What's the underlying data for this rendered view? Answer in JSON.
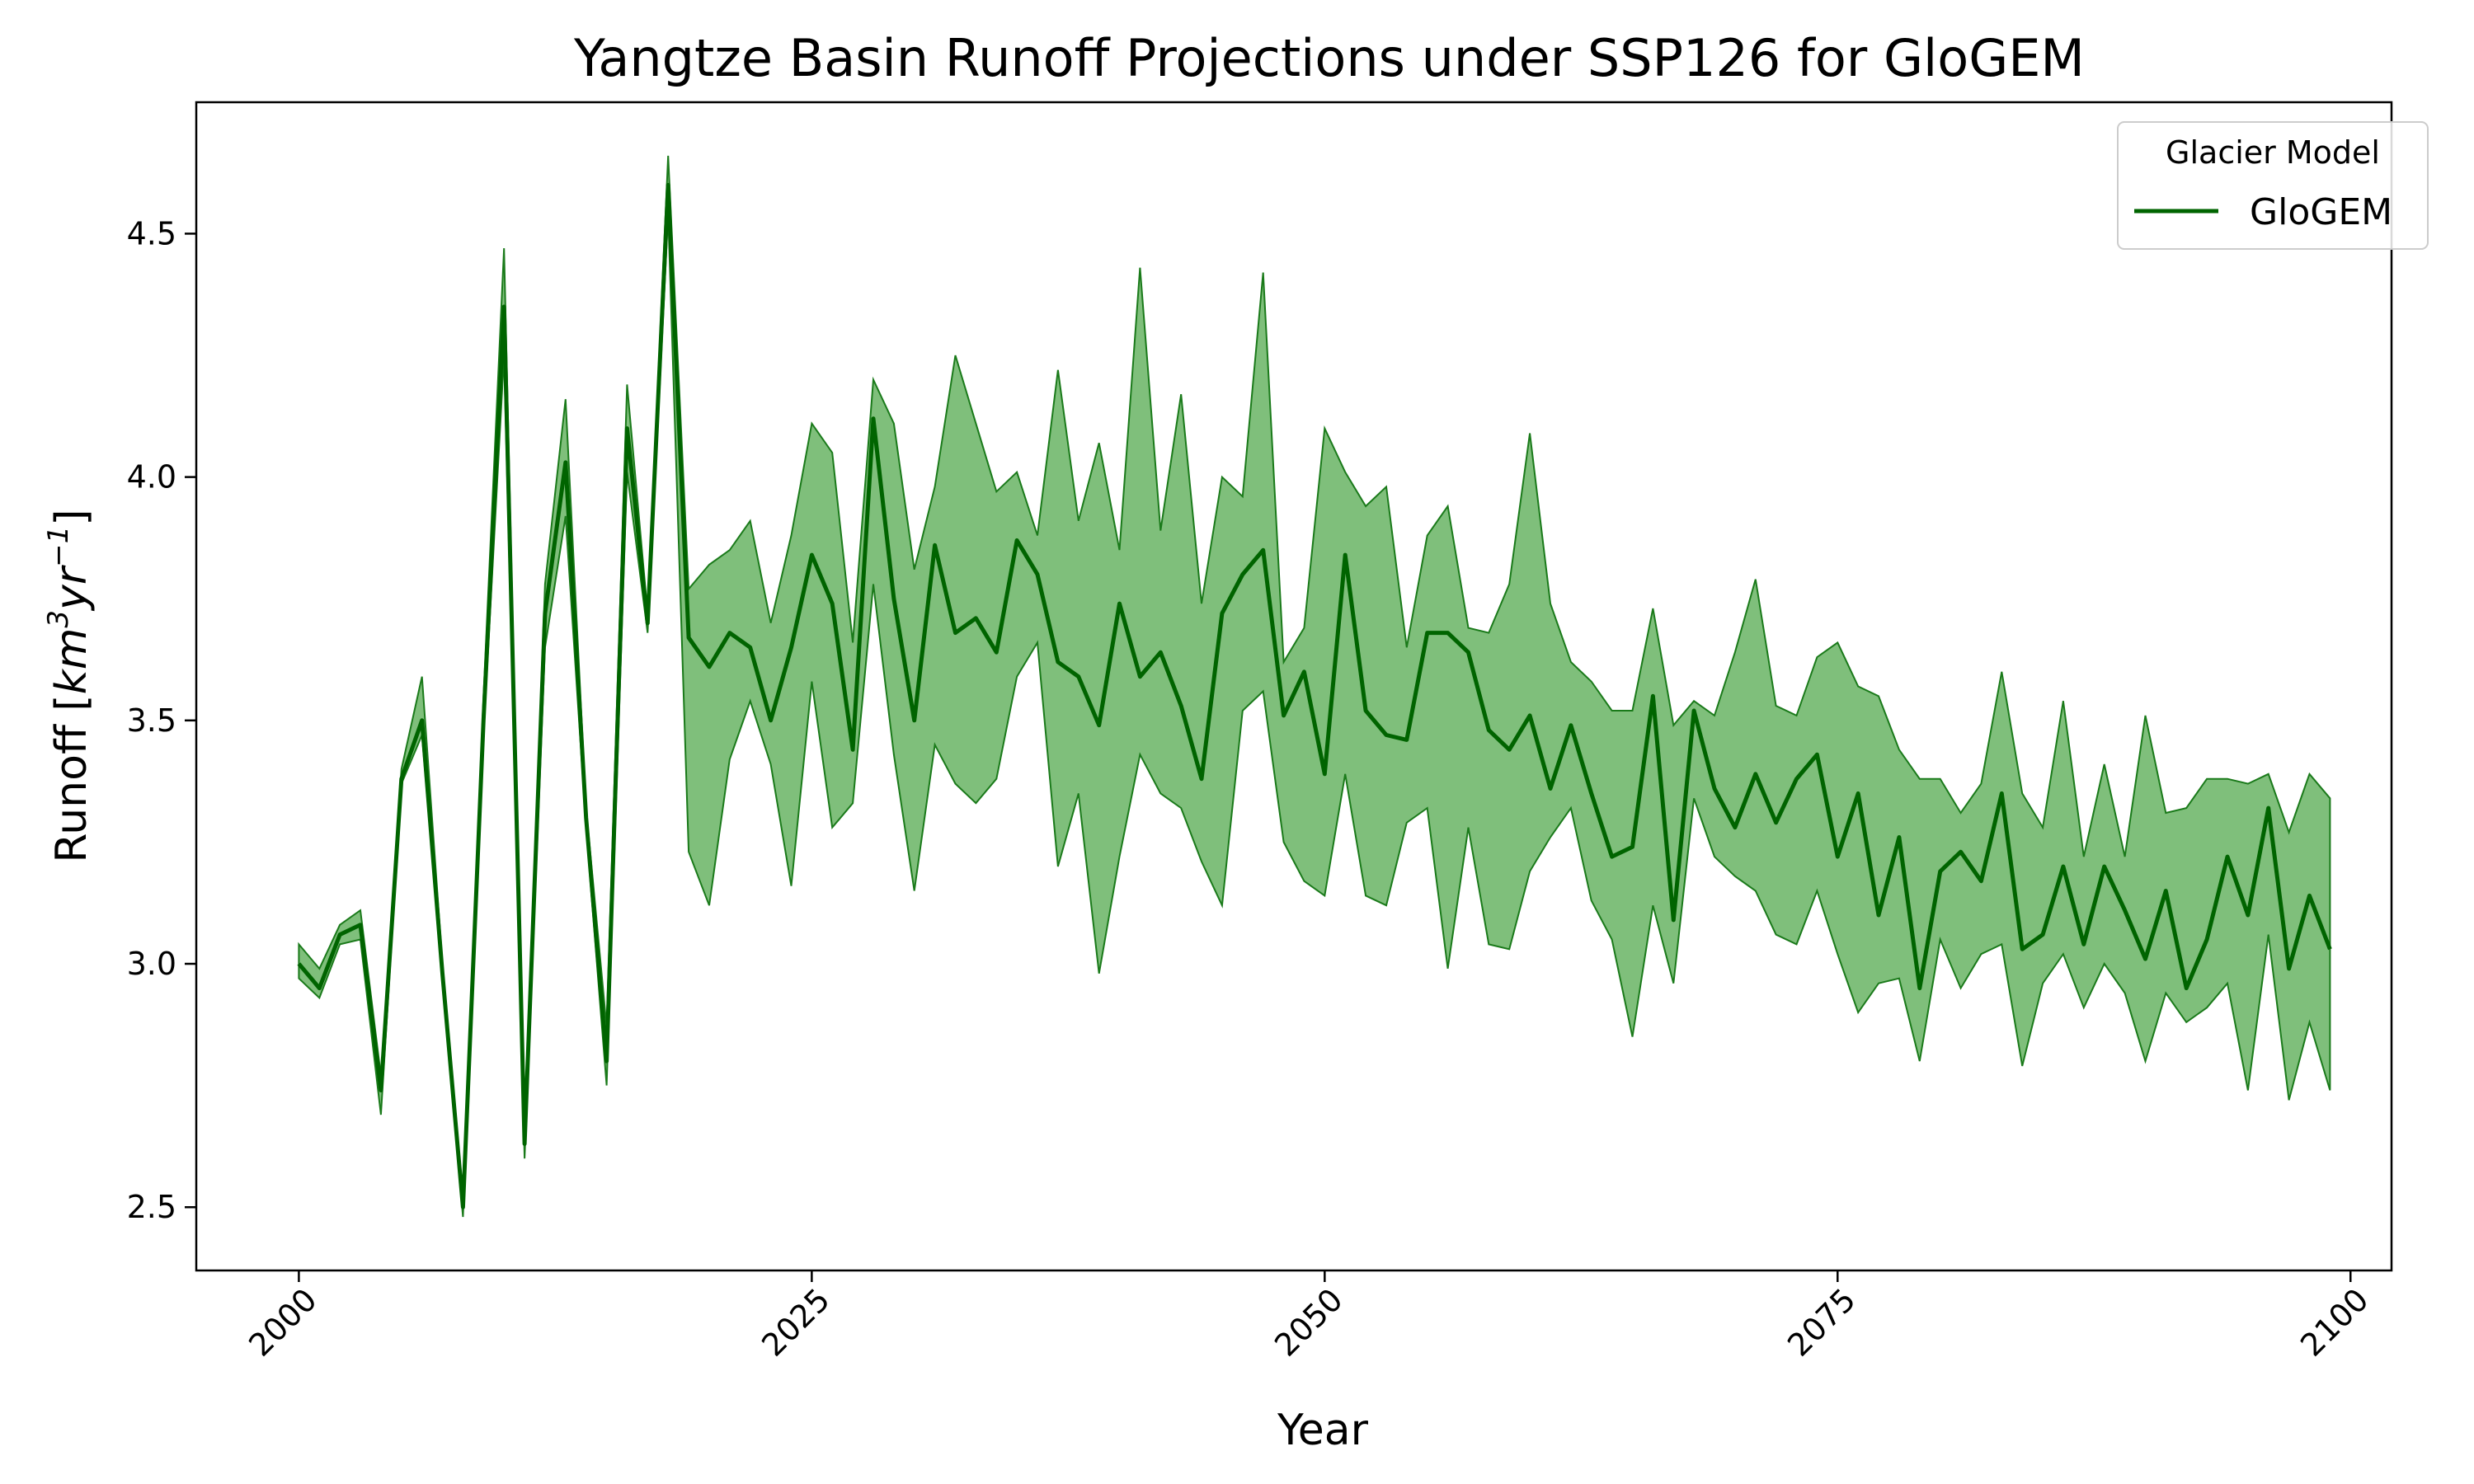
{
  "chart_data": {
    "type": "line",
    "title": "Yangtze Basin Runoff Projections under SSP126 for GloGEM",
    "xlabel": "Year",
    "ylabel": "Runoff [km³yr⁻¹]",
    "ylabel_parts": {
      "main": "Runoff [",
      "km": "km",
      "sup3": "3",
      "yr": "yr",
      "supm1": "−1",
      "close": "]"
    },
    "xlim": [
      1995,
      2102
    ],
    "ylim": [
      2.37,
      4.77
    ],
    "xticks": [
      2000,
      2025,
      2050,
      2075,
      2100
    ],
    "yticks": [
      2.5,
      3.0,
      3.5,
      4.0,
      4.5
    ],
    "xtick_labels": [
      "2000",
      "2025",
      "2050",
      "2075",
      "2100"
    ],
    "ytick_labels": [
      "2.5",
      "3.0",
      "3.5",
      "4.0",
      "4.5"
    ],
    "grid": false,
    "legend": {
      "title": "Glacier Model",
      "placement": "top-right",
      "entries": [
        "GloGEM"
      ]
    },
    "colors": {
      "line": "#006400",
      "band_fill": "#7fbf7b",
      "band_edge": "#1a7a1a"
    },
    "series": [
      {
        "name": "GloGEM",
        "x": [
          2000,
          2001,
          2002,
          2003,
          2004,
          2005,
          2006,
          2007,
          2008,
          2009,
          2010,
          2011,
          2012,
          2013,
          2014,
          2015,
          2016,
          2017,
          2018,
          2019,
          2020,
          2021,
          2022,
          2023,
          2024,
          2025,
          2026,
          2027,
          2028,
          2029,
          2030,
          2031,
          2032,
          2033,
          2034,
          2035,
          2036,
          2037,
          2038,
          2039,
          2040,
          2041,
          2042,
          2043,
          2044,
          2045,
          2046,
          2047,
          2048,
          2049,
          2050,
          2051,
          2052,
          2053,
          2054,
          2055,
          2056,
          2057,
          2058,
          2059,
          2060,
          2061,
          2062,
          2063,
          2064,
          2065,
          2066,
          2067,
          2068,
          2069,
          2070,
          2071,
          2072,
          2073,
          2074,
          2075,
          2076,
          2077,
          2078,
          2079,
          2080,
          2081,
          2082,
          2083,
          2084,
          2085,
          2086,
          2087,
          2088,
          2089,
          2090,
          2091,
          2092,
          2093,
          2094,
          2095,
          2096,
          2097,
          2098,
          2099
        ],
        "mean": [
          3.0,
          2.95,
          3.06,
          3.08,
          2.74,
          3.38,
          3.5,
          2.98,
          2.5,
          3.5,
          4.35,
          2.63,
          3.72,
          4.03,
          3.3,
          2.8,
          4.1,
          3.7,
          4.6,
          3.67,
          3.61,
          3.68,
          3.65,
          3.5,
          3.65,
          3.84,
          3.74,
          3.44,
          4.12,
          3.75,
          3.5,
          3.86,
          3.68,
          3.71,
          3.64,
          3.87,
          3.8,
          3.62,
          3.59,
          3.49,
          3.74,
          3.59,
          3.64,
          3.53,
          3.38,
          3.72,
          3.8,
          3.85,
          3.51,
          3.6,
          3.39,
          3.84,
          3.52,
          3.47,
          3.46,
          3.68,
          3.68,
          3.64,
          3.48,
          3.44,
          3.51,
          3.36,
          3.49,
          3.35,
          3.22,
          3.24,
          3.55,
          3.09,
          3.52,
          3.36,
          3.28,
          3.39,
          3.29,
          3.38,
          3.43,
          3.22,
          3.35,
          3.1,
          3.26,
          2.95,
          3.19,
          3.23,
          3.17,
          3.35,
          3.03,
          3.06,
          3.2,
          3.04,
          3.2,
          3.11,
          3.01,
          3.15,
          2.95,
          3.05,
          3.22,
          3.1,
          3.32,
          2.99,
          3.14,
          3.03
        ],
        "upper": [
          3.04,
          2.99,
          3.08,
          3.11,
          2.77,
          3.4,
          3.59,
          3.0,
          2.52,
          3.55,
          4.47,
          2.65,
          3.78,
          4.16,
          3.32,
          2.87,
          4.19,
          3.72,
          4.66,
          3.77,
          3.82,
          3.85,
          3.91,
          3.7,
          3.88,
          4.11,
          4.05,
          3.66,
          4.2,
          4.11,
          3.81,
          3.98,
          4.25,
          4.11,
          3.97,
          4.01,
          3.88,
          4.22,
          3.91,
          4.07,
          3.85,
          4.43,
          3.89,
          4.17,
          3.74,
          4.0,
          3.96,
          4.42,
          3.62,
          3.69,
          4.1,
          4.01,
          3.94,
          3.98,
          3.65,
          3.88,
          3.94,
          3.69,
          3.68,
          3.78,
          4.09,
          3.74,
          3.62,
          3.58,
          3.52,
          3.52,
          3.73,
          3.49,
          3.54,
          3.51,
          3.64,
          3.79,
          3.53,
          3.51,
          3.63,
          3.66,
          3.57,
          3.55,
          3.44,
          3.38,
          3.38,
          3.31,
          3.37,
          3.6,
          3.35,
          3.28,
          3.54,
          3.22,
          3.41,
          3.22,
          3.51,
          3.31,
          3.32,
          3.38,
          3.38,
          3.37,
          3.39,
          3.27,
          3.39,
          3.34
        ],
        "lower": [
          2.97,
          2.93,
          3.04,
          3.05,
          2.69,
          3.37,
          3.47,
          2.97,
          2.48,
          3.47,
          4.25,
          2.6,
          3.65,
          3.92,
          3.28,
          2.75,
          4.01,
          3.68,
          4.54,
          3.23,
          3.12,
          3.42,
          3.54,
          3.41,
          3.16,
          3.58,
          3.28,
          3.33,
          3.78,
          3.43,
          3.15,
          3.45,
          3.37,
          3.33,
          3.38,
          3.59,
          3.66,
          3.2,
          3.35,
          2.98,
          3.22,
          3.43,
          3.35,
          3.32,
          3.21,
          3.12,
          3.52,
          3.56,
          3.25,
          3.17,
          3.14,
          3.39,
          3.14,
          3.12,
          3.29,
          3.32,
          2.99,
          3.28,
          3.04,
          3.03,
          3.19,
          3.26,
          3.32,
          3.13,
          3.05,
          2.85,
          3.12,
          2.96,
          3.34,
          3.22,
          3.18,
          3.15,
          3.06,
          3.04,
          3.15,
          3.02,
          2.9,
          2.96,
          2.97,
          2.8,
          3.05,
          2.95,
          3.02,
          3.04,
          2.79,
          2.96,
          3.02,
          2.91,
          3.0,
          2.94,
          2.8,
          2.94,
          2.88,
          2.91,
          2.96,
          2.74,
          3.06,
          2.72,
          2.88,
          2.74
        ]
      }
    ]
  }
}
